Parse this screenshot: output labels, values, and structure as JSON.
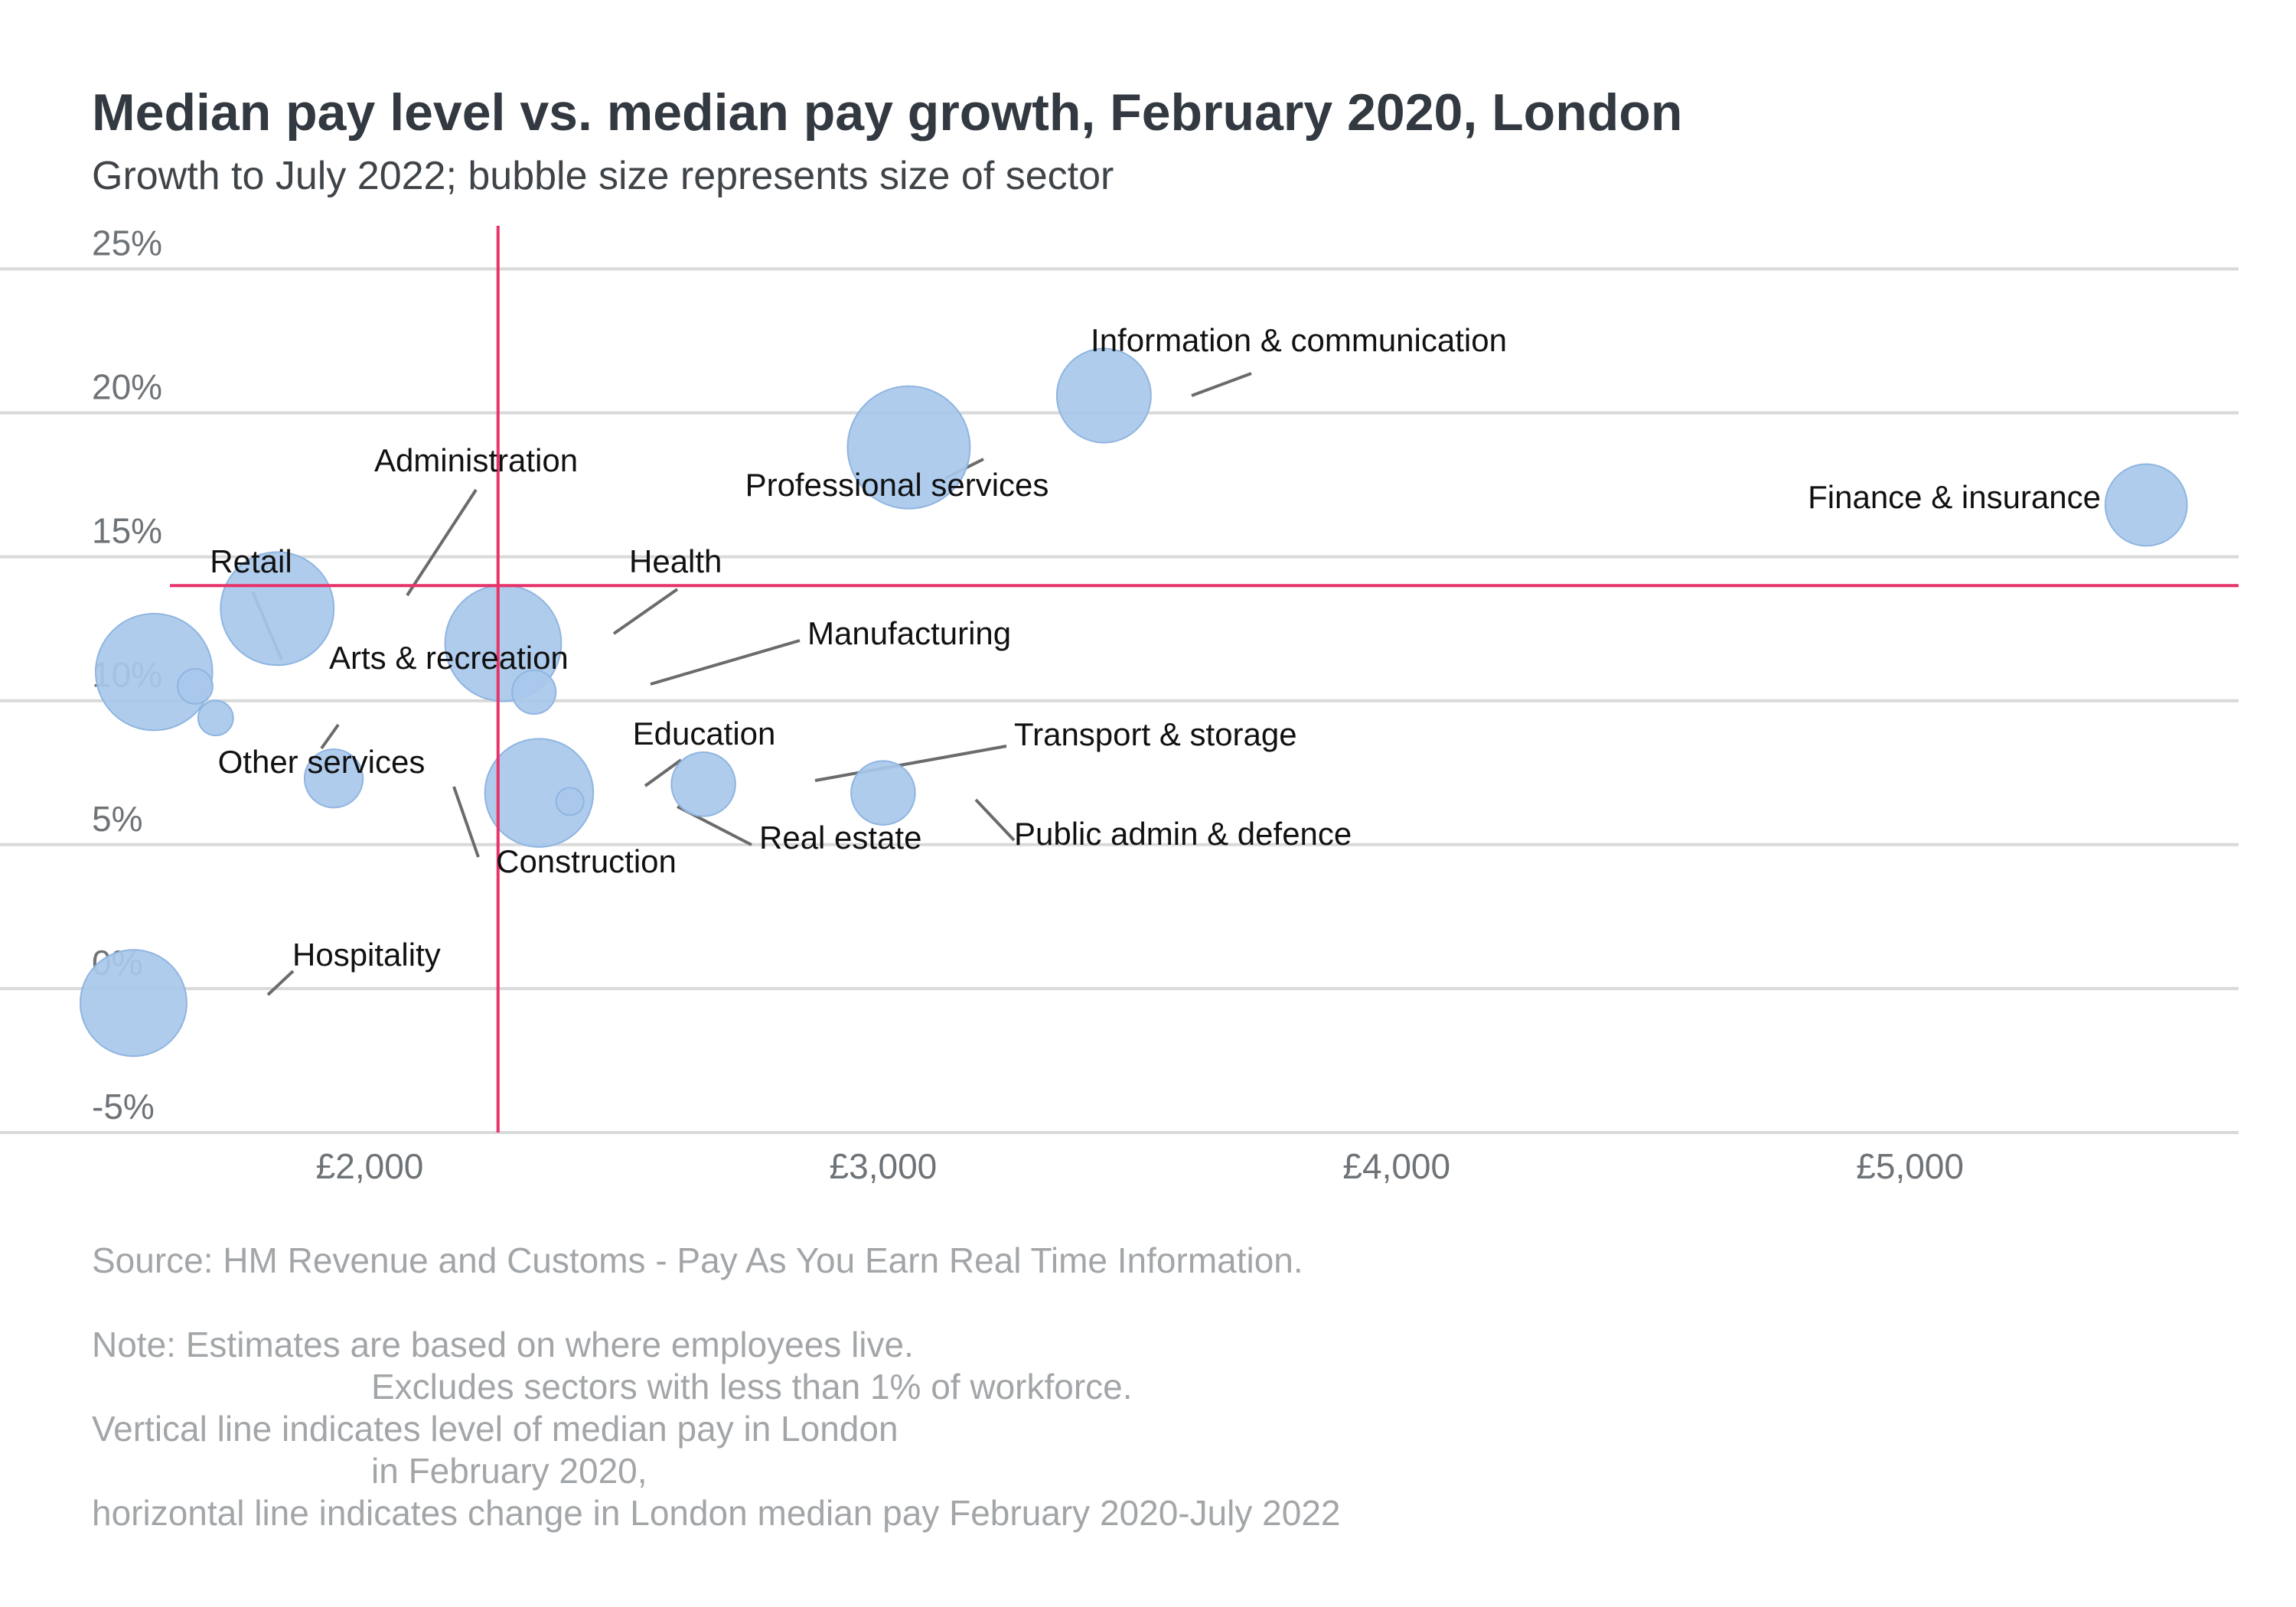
{
  "title": "Median pay level vs. median pay growth, February 2020, London",
  "subtitle": "Growth to July 2022; bubble size represents size of sector",
  "source": "Source: HM Revenue and Customs - Pay As You Earn Real Time Information.",
  "notes": [
    "Note: Estimates are based on where employees live.",
    "Excludes sectors with less than 1% of workforce.",
    "Vertical line indicates level of median pay in London",
    "in February 2020,",
    "horizontal line indicates change in London median pay February 2020-July 2022"
  ],
  "colors": {
    "bubble": "#a8c8ec",
    "bubble_stroke": "#8fb5e0",
    "reference": "#e8336a",
    "grid": "#d9d9d9",
    "leader": "#6b6b6b"
  },
  "chart_data": {
    "type": "scatter",
    "title": "Median pay level vs. median pay growth, February 2020, London",
    "subtitle": "Growth to July 2022; bubble size represents size of sector",
    "xlabel": "",
    "ylabel": "",
    "x_unit": "£ per month",
    "y_unit": "%",
    "xlim": [
      1280,
      5640
    ],
    "ylim": [
      -5,
      26.5
    ],
    "x_ticks": [
      2000,
      3000,
      4000,
      5000
    ],
    "x_tick_labels": [
      "£2,000",
      "£3,000",
      "£4,000",
      "£5,000"
    ],
    "y_ticks": [
      -5,
      0,
      5,
      10,
      15,
      20,
      25
    ],
    "y_tick_labels": [
      "-5%",
      "0%",
      "5%",
      "10%",
      "15%",
      "20%",
      "25%"
    ],
    "grid": "horizontal",
    "reference_lines": {
      "vertical_x": 2250,
      "horizontal_y": 14.0
    },
    "points": [
      {
        "label": "Retail",
        "x": 1580,
        "y": 11.0,
        "size": 10
      },
      {
        "label": "Hospitality",
        "x": 1540,
        "y": -0.5,
        "size": 8.3
      },
      {
        "label": "Arts & recreation",
        "x": 1660,
        "y": 10.5,
        "size": 0.9
      },
      {
        "label": "Other services",
        "x": 1700,
        "y": 9.4,
        "size": 0.9
      },
      {
        "label": "Administration",
        "x": 1820,
        "y": 13.2,
        "size": 9.4
      },
      {
        "label": "Construction",
        "x": 1930,
        "y": 7.3,
        "size": 2.5
      },
      {
        "label": "Health",
        "x": 2260,
        "y": 12.0,
        "size": 9.9
      },
      {
        "label": "Manufacturing",
        "x": 2320,
        "y": 10.3,
        "size": 1.4
      },
      {
        "label": "Education",
        "x": 2330,
        "y": 6.8,
        "size": 8.6
      },
      {
        "label": "Real estate",
        "x": 2390,
        "y": 6.5,
        "size": 0.5
      },
      {
        "label": "Transport & storage",
        "x": 2650,
        "y": 7.1,
        "size": 3.0
      },
      {
        "label": "Public admin & defence",
        "x": 3000,
        "y": 6.8,
        "size": 3.0
      },
      {
        "label": "Professional services",
        "x": 3050,
        "y": 18.8,
        "size": 11.0
      },
      {
        "label": "Information & communication",
        "x": 3430,
        "y": 20.6,
        "size": 6.5
      },
      {
        "label": "Finance & insurance",
        "x": 5460,
        "y": 16.8,
        "size": 4.9
      }
    ]
  }
}
